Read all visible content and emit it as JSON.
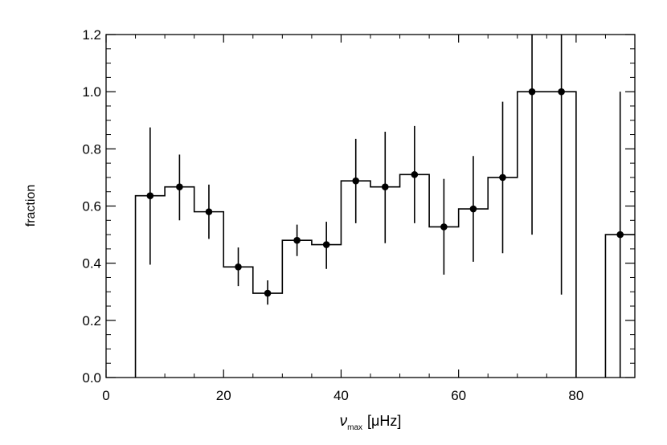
{
  "chart_data": {
    "type": "histogram",
    "title": "",
    "xlabel": {
      "main": "ν",
      "sub": "max",
      "unit": "[μHz]"
    },
    "ylabel": "fraction",
    "xlim": [
      0,
      90
    ],
    "ylim": [
      0,
      1.2
    ],
    "grid": false,
    "legend": "none",
    "x_ticks": [
      0,
      20,
      40,
      60,
      80
    ],
    "x_tick_labels": [
      "0",
      "20",
      "40",
      "60",
      "80"
    ],
    "y_ticks": [
      0,
      0.2,
      0.4,
      0.6,
      0.8,
      1.0,
      1.2
    ],
    "y_tick_labels": [
      "0.0",
      "0.2",
      "0.4",
      "0.6",
      "0.8",
      "1.0",
      "1.2"
    ],
    "bin_width": 5,
    "bins": [
      {
        "left": 5,
        "x": 7.5,
        "y": 0.636,
        "err_low": 0.395,
        "err_high": 0.875
      },
      {
        "left": 10,
        "x": 12.5,
        "y": 0.667,
        "err_low": 0.55,
        "err_high": 0.78
      },
      {
        "left": 15,
        "x": 17.5,
        "y": 0.58,
        "err_low": 0.485,
        "err_high": 0.675
      },
      {
        "left": 20,
        "x": 22.5,
        "y": 0.387,
        "err_low": 0.32,
        "err_high": 0.455
      },
      {
        "left": 25,
        "x": 27.5,
        "y": 0.295,
        "err_low": 0.255,
        "err_high": 0.34
      },
      {
        "left": 30,
        "x": 32.5,
        "y": 0.48,
        "err_low": 0.425,
        "err_high": 0.535
      },
      {
        "left": 35,
        "x": 37.5,
        "y": 0.465,
        "err_low": 0.38,
        "err_high": 0.545
      },
      {
        "left": 40,
        "x": 42.5,
        "y": 0.688,
        "err_low": 0.54,
        "err_high": 0.835
      },
      {
        "left": 45,
        "x": 47.5,
        "y": 0.667,
        "err_low": 0.47,
        "err_high": 0.86
      },
      {
        "left": 50,
        "x": 52.5,
        "y": 0.71,
        "err_low": 0.54,
        "err_high": 0.88
      },
      {
        "left": 55,
        "x": 57.5,
        "y": 0.527,
        "err_low": 0.36,
        "err_high": 0.695
      },
      {
        "left": 60,
        "x": 62.5,
        "y": 0.59,
        "err_low": 0.405,
        "err_high": 0.775
      },
      {
        "left": 65,
        "x": 67.5,
        "y": 0.7,
        "err_low": 0.435,
        "err_high": 0.965
      },
      {
        "left": 70,
        "x": 72.5,
        "y": 1.0,
        "err_low": 0.5,
        "err_high": 1.2
      },
      {
        "left": 75,
        "x": 77.5,
        "y": 1.0,
        "err_low": 0.29,
        "err_high": 1.2
      },
      {
        "left": 85,
        "x": 87.5,
        "y": 0.5,
        "err_low": 0.0,
        "err_high": 1.0
      }
    ]
  }
}
